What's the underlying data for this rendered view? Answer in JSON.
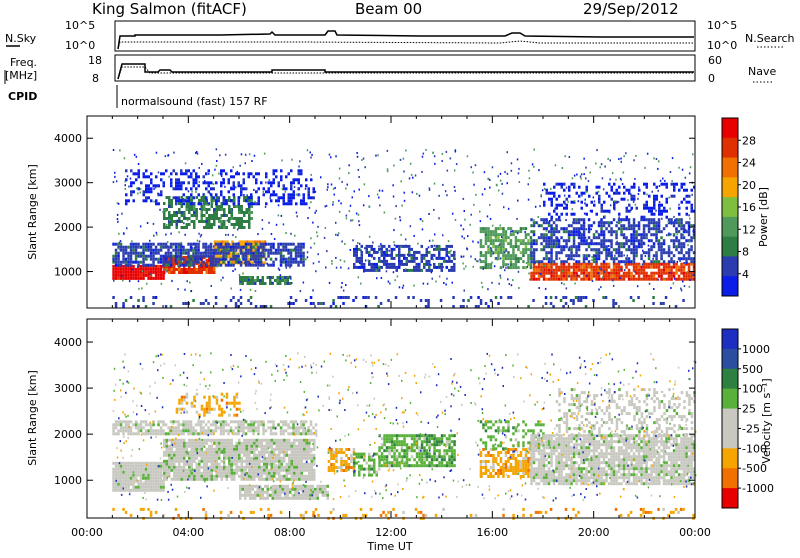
{
  "header": {
    "station": "King Salmon (fitACF)",
    "beam": "Beam 00",
    "date": "29/Sep/2012"
  },
  "strip_panels": {
    "nsky_label": "N.Sky",
    "nsky_ticks": [
      "10^5",
      "10^0"
    ],
    "nsearch_label": "N.Search",
    "nsearch_ticks": [
      "10^5",
      "10^0"
    ],
    "freq_label_line1": "Freq.",
    "freq_label_line2": "[MHz]",
    "freq_ticks": [
      "18",
      "8"
    ],
    "nave_label": "Nave",
    "nave_ticks": [
      "60",
      "0"
    ],
    "cpid_label": "CPID",
    "cpid_text": "normalsound (fast) 157 RF"
  },
  "colors": {
    "power": [
      "#0a1ee8",
      "#2a3cb0",
      "#2e7d45",
      "#4f9a5a",
      "#7fbf3f",
      "#f5a400",
      "#f07000",
      "#e03000",
      "#e80000"
    ],
    "velocity": [
      "#1c2fc0",
      "#2a4fa0",
      "#2e8040",
      "#59b13a",
      "#c8c8c0",
      "#c8c8c0",
      "#f5a400",
      "#f07000",
      "#e80000"
    ]
  },
  "chart_data": [
    {
      "type": "heatmap",
      "quantity": "power",
      "ylabel": "Slant Range [km]",
      "xlabel": "",
      "yticks": [
        "1000",
        "2000",
        "3000",
        "4000"
      ],
      "xticks": [],
      "colorbar_label": "Power [dB]",
      "colorbar_ticks": [
        "4",
        "8",
        "12",
        "16",
        "20",
        "24",
        "28"
      ],
      "x_range_hours": [
        0,
        24
      ],
      "y_range_km": [
        180,
        4500
      ],
      "bands": [
        {
          "t0": 1.0,
          "t1": 3.0,
          "r0": 850,
          "r1": 1150,
          "level": 8,
          "density": 0.95
        },
        {
          "t0": 3.0,
          "t1": 5.0,
          "r0": 950,
          "r1": 1350,
          "level": 7,
          "density": 0.9
        },
        {
          "t0": 5.0,
          "t1": 7.0,
          "r0": 1200,
          "r1": 1700,
          "level": 5,
          "density": 0.85
        },
        {
          "t0": 1.0,
          "t1": 8.5,
          "r0": 1150,
          "r1": 1650,
          "level": 1,
          "density": 0.75
        },
        {
          "t0": 3.0,
          "t1": 6.5,
          "r0": 2000,
          "r1": 2700,
          "level": 2,
          "density": 0.6
        },
        {
          "t0": 1.5,
          "t1": 9.0,
          "r0": 2500,
          "r1": 3300,
          "level": 0,
          "density": 0.3
        },
        {
          "t0": 6.0,
          "t1": 8.0,
          "r0": 700,
          "r1": 900,
          "level": 2,
          "density": 0.8
        },
        {
          "t0": 10.5,
          "t1": 14.5,
          "r0": 1000,
          "r1": 1600,
          "level": 1,
          "density": 0.55
        },
        {
          "t0": 15.5,
          "t1": 17.5,
          "r0": 1100,
          "r1": 2000,
          "level": 3,
          "density": 0.6
        },
        {
          "t0": 17.5,
          "t1": 24.0,
          "r0": 850,
          "r1": 1200,
          "level": 7,
          "density": 0.85
        },
        {
          "t0": 17.5,
          "t1": 24.0,
          "r0": 1200,
          "r1": 2200,
          "level": 1,
          "density": 0.55
        },
        {
          "t0": 18.0,
          "t1": 24.0,
          "r0": 2200,
          "r1": 3000,
          "level": 0,
          "density": 0.25
        },
        {
          "t0": 1.0,
          "t1": 24.0,
          "r0": 200,
          "r1": 450,
          "level": 1,
          "density": 0.15
        }
      ]
    },
    {
      "type": "heatmap",
      "quantity": "velocity",
      "ylabel": "Slant Range [km]",
      "xlabel": "Time UT",
      "yticks": [
        "1000",
        "2000",
        "3000",
        "4000"
      ],
      "xticks": [
        "00:00",
        "04:00",
        "08:00",
        "12:00",
        "16:00",
        "20:00",
        "00:00"
      ],
      "colorbar_label": "Velocity [m s⁻¹]",
      "colorbar_ticks": [
        "1000",
        "500",
        "100",
        "25",
        "-25",
        "-100",
        "-500",
        "-1000"
      ],
      "x_range_hours": [
        0,
        24
      ],
      "y_range_km": [
        180,
        4500
      ],
      "bands": [
        {
          "t0": 1.0,
          "t1": 3.0,
          "r0": 800,
          "r1": 1400,
          "level": 4,
          "density": 0.95
        },
        {
          "t0": 3.0,
          "t1": 9.0,
          "r0": 1000,
          "r1": 1900,
          "level": 4,
          "density": 0.9
        },
        {
          "t0": 1.0,
          "t1": 9.0,
          "r0": 2000,
          "r1": 2300,
          "level": 4,
          "density": 0.7
        },
        {
          "t0": 3.5,
          "t1": 6.0,
          "r0": 2400,
          "r1": 2900,
          "level": 6,
          "density": 0.3
        },
        {
          "t0": 6.0,
          "t1": 9.5,
          "r0": 600,
          "r1": 900,
          "level": 4,
          "density": 0.85
        },
        {
          "t0": 9.5,
          "t1": 10.5,
          "r0": 1200,
          "r1": 1700,
          "level": 6,
          "density": 0.7
        },
        {
          "t0": 10.5,
          "t1": 11.5,
          "r0": 1100,
          "r1": 1600,
          "level": 3,
          "density": 0.5
        },
        {
          "t0": 11.5,
          "t1": 14.5,
          "r0": 1300,
          "r1": 2000,
          "level": 3,
          "density": 0.7
        },
        {
          "t0": 15.5,
          "t1": 17.5,
          "r0": 1100,
          "r1": 1700,
          "level": 6,
          "density": 0.6
        },
        {
          "t0": 15.5,
          "t1": 18.0,
          "r0": 1700,
          "r1": 2300,
          "level": 3,
          "density": 0.4
        },
        {
          "t0": 17.5,
          "t1": 24.0,
          "r0": 900,
          "r1": 2000,
          "level": 4,
          "density": 0.85
        },
        {
          "t0": 18.5,
          "t1": 24.0,
          "r0": 2000,
          "r1": 3000,
          "level": 4,
          "density": 0.3
        },
        {
          "t0": 1.0,
          "t1": 24.0,
          "r0": 200,
          "r1": 400,
          "level": 6,
          "density": 0.12
        }
      ]
    }
  ]
}
